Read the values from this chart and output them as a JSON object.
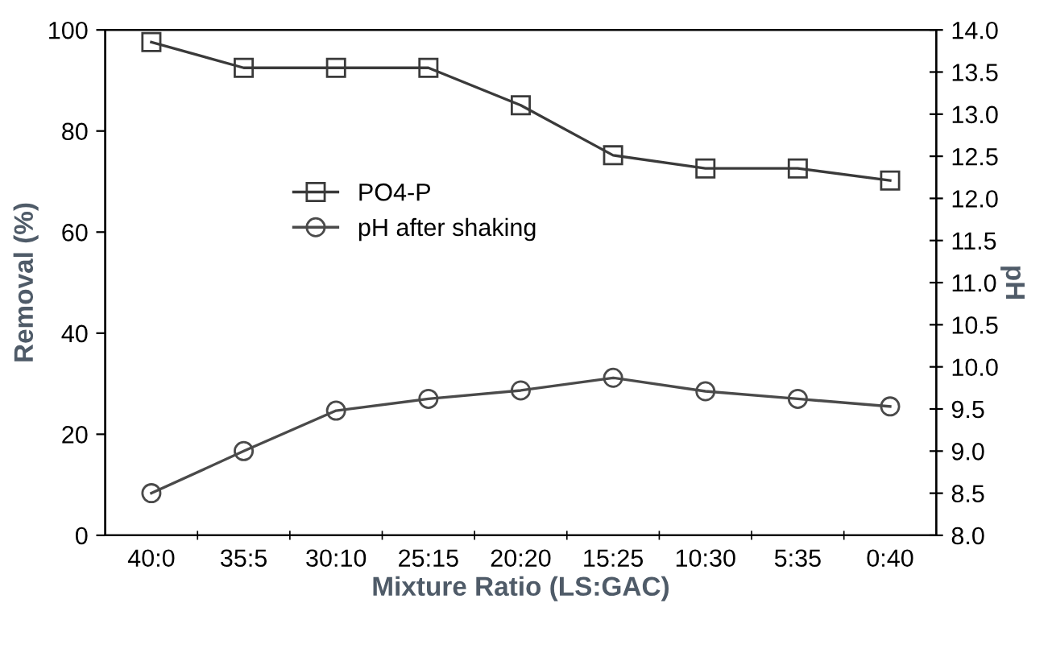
{
  "chart_data": {
    "type": "line",
    "xlabel": "Mixture Ratio (LS:GAC)",
    "ylabel": "Removal (%)",
    "y2label": "pH",
    "categories": [
      "40:0",
      "35:5",
      "30:10",
      "25:15",
      "20:20",
      "15:25",
      "10:30",
      "5:35",
      "0:40"
    ],
    "series": [
      {
        "name": "PO4-P",
        "color": "#3a3a3a",
        "marker": "square",
        "values": [
          97.6,
          92.5,
          92.5,
          92.5,
          85.1,
          75.2,
          72.6,
          72.6,
          70.2
        ]
      },
      {
        "name": "pH after shaking",
        "color": "#4a4a4a",
        "marker": "circle",
        "axis": "y2",
        "values": [
          8.5,
          9.0,
          9.48,
          9.62,
          9.72,
          9.87,
          9.71,
          9.62,
          9.53
        ]
      }
    ],
    "ylim": [
      0,
      100
    ],
    "yticks": [
      0,
      20,
      40,
      60,
      80,
      100
    ],
    "y2lim": [
      8.0,
      14.0
    ],
    "y2ticks": [
      {
        "value": 8.0,
        "label": "8.0"
      },
      {
        "value": 8.5,
        "label": "8.5"
      },
      {
        "value": 9.0,
        "label": "9.0"
      },
      {
        "value": 9.5,
        "label": "9.5"
      },
      {
        "value": 10.0,
        "label": "10.0"
      },
      {
        "value": 10.5,
        "label": "10.5"
      },
      {
        "value": 11.0,
        "label": "11.0"
      },
      {
        "value": 11.5,
        "label": "11.5"
      },
      {
        "value": 12.0,
        "label": "12.0"
      },
      {
        "value": 12.5,
        "label": "12.5"
      },
      {
        "value": 13.0,
        "label": "13.0"
      },
      {
        "value": 13.5,
        "label": "13.5"
      },
      {
        "value": 14.0,
        "label": "14.0"
      }
    ],
    "legend": "center left",
    "grid": false,
    "line_style": "solid"
  }
}
